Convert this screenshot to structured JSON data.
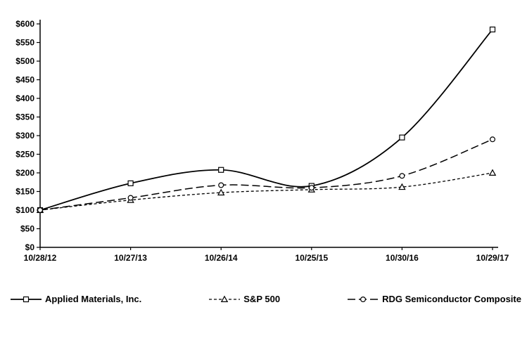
{
  "chart_data": {
    "type": "line",
    "title": "",
    "xlabel": "",
    "ylabel": "",
    "x": [
      "10/28/12",
      "10/27/13",
      "10/26/14",
      "10/25/15",
      "10/30/16",
      "10/29/17"
    ],
    "series": [
      {
        "name": "Applied Materials, Inc.",
        "marker": "square",
        "dash": "solid",
        "stroke_width": 1.8,
        "values": [
          100,
          172,
          208,
          165,
          295,
          585
        ]
      },
      {
        "name": "S&P 500",
        "marker": "triangle",
        "dash": "short",
        "stroke_width": 1.3,
        "values": [
          100,
          127,
          147,
          155,
          162,
          200
        ]
      },
      {
        "name": "RDG Semiconductor Composite",
        "marker": "circle",
        "dash": "long",
        "stroke_width": 1.5,
        "values": [
          100,
          133,
          167,
          160,
          192,
          290
        ]
      }
    ],
    "ylim": [
      0,
      600
    ],
    "ytick_step": 50,
    "ytick_prefix": "$",
    "grid": false,
    "legend_position": "bottom",
    "line_color": "#000000"
  }
}
